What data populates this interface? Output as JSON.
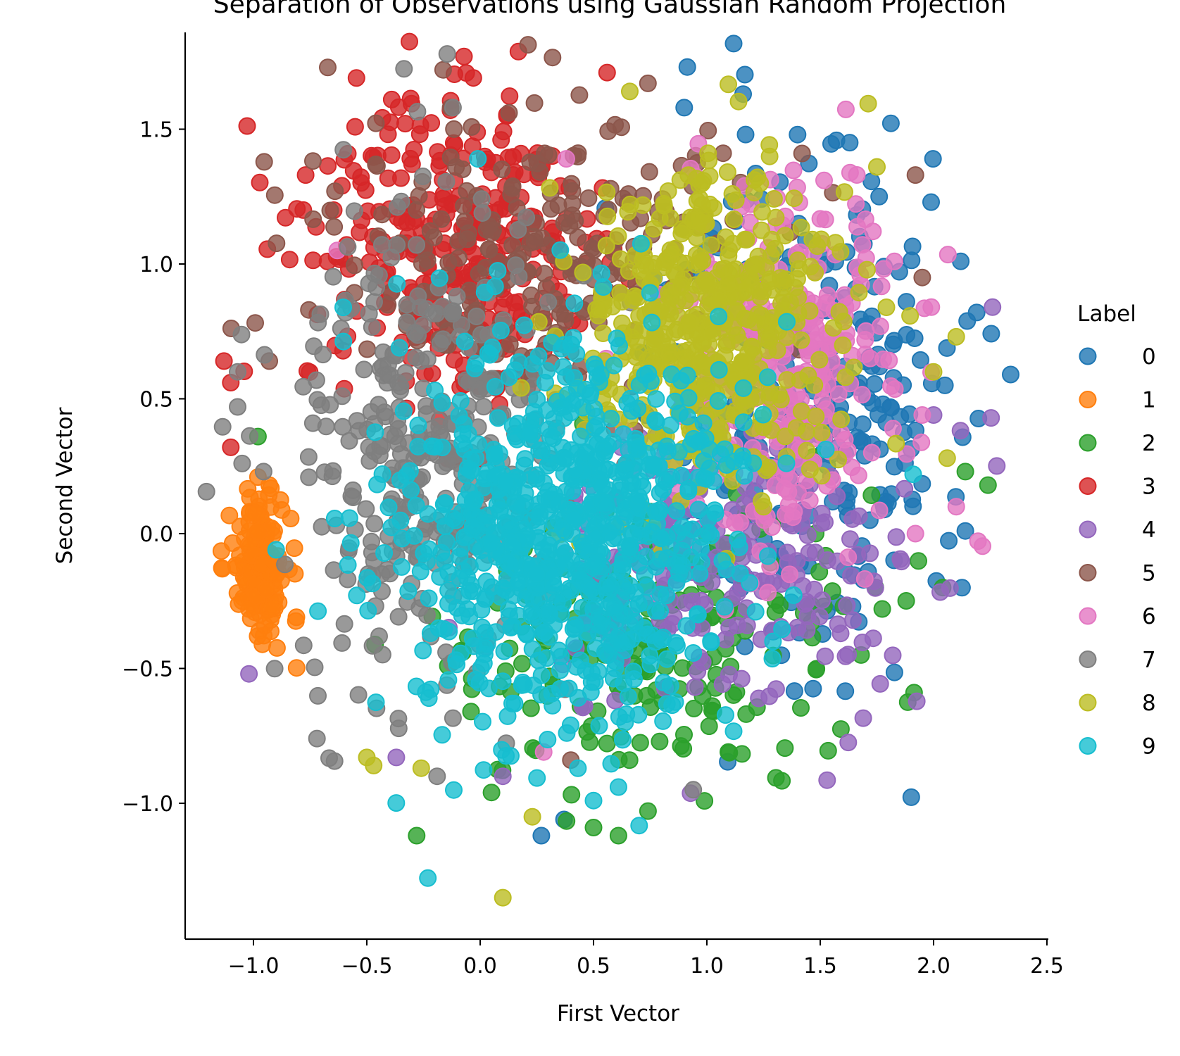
{
  "chart_data": {
    "type": "scatter",
    "title": "Separation of Observations using Gaussian Random Projection",
    "xlabel": "First Vector",
    "ylabel": "Second Vector",
    "xlim": [
      -1.3,
      2.5
    ],
    "ylim": [
      -1.5,
      1.87
    ],
    "xticks": [
      -1.0,
      -0.5,
      0.0,
      0.5,
      1.0,
      1.5,
      2.0,
      2.5
    ],
    "xtick_labels": [
      "−1.0",
      "−0.5",
      "0.0",
      "0.5",
      "1.0",
      "1.5",
      "2.0",
      "2.5"
    ],
    "yticks": [
      -1.0,
      -0.5,
      0.0,
      0.5,
      1.0,
      1.5
    ],
    "ytick_labels": [
      "−1.0",
      "−0.5",
      "0.0",
      "0.5",
      "1.0",
      "1.5"
    ],
    "grid": false,
    "legend": {
      "title": "Label",
      "placement": "right"
    },
    "series": [
      {
        "name": "0",
        "color": "#1f77b4",
        "center": [
          1.45,
          0.45
        ],
        "spread": [
          0.33,
          0.45
        ],
        "count": 280,
        "points": [
          [
            1.16,
            1.63
          ],
          [
            0.9,
            1.58
          ],
          [
            1.63,
            1.45
          ],
          [
            1.4,
            1.48
          ],
          [
            2.34,
            0.59
          ],
          [
            2.12,
            1.01
          ],
          [
            2.19,
            0.82
          ],
          [
            2.14,
            0.01
          ],
          [
            0.27,
            -1.12
          ],
          [
            0.37,
            -1.06
          ],
          [
            1.88,
            0.86
          ],
          [
            1.76,
            1.25
          ],
          [
            2.05,
            0.55
          ]
        ]
      },
      {
        "name": "1",
        "color": "#ff7f0e",
        "center": [
          -0.97,
          -0.12
        ],
        "spread": [
          0.06,
          0.14
        ],
        "count": 160,
        "points": [
          [
            -0.98,
            0.21
          ],
          [
            -1.05,
            -0.25
          ],
          [
            -0.93,
            0.18
          ],
          [
            -1.02,
            -0.28
          ]
        ]
      },
      {
        "name": "2",
        "color": "#2ca02c",
        "center": [
          0.75,
          -0.35
        ],
        "spread": [
          0.42,
          0.28
        ],
        "count": 230,
        "points": [
          [
            -0.28,
            -1.12
          ],
          [
            0.61,
            -1.12
          ],
          [
            2.24,
            0.18
          ],
          [
            2.14,
            0.23
          ],
          [
            2.04,
            -0.2
          ],
          [
            1.68,
            -0.45
          ],
          [
            -0.98,
            0.36
          ],
          [
            0.5,
            -1.09
          ],
          [
            0.05,
            -0.96
          ]
        ]
      },
      {
        "name": "3",
        "color": "#d62728",
        "center": [
          -0.1,
          1.05
        ],
        "spread": [
          0.33,
          0.27
        ],
        "count": 340,
        "points": [
          [
            -0.03,
            1.69
          ],
          [
            0.56,
            1.71
          ],
          [
            -0.39,
            1.61
          ],
          [
            -1.13,
            0.64
          ],
          [
            -1.1,
            0.56
          ],
          [
            -1.1,
            0.32
          ],
          [
            -0.77,
            1.33
          ],
          [
            -0.78,
            1.2
          ],
          [
            -0.61,
            1.29
          ]
        ]
      },
      {
        "name": "4",
        "color": "#9467bd",
        "center": [
          1.1,
          -0.1
        ],
        "spread": [
          0.42,
          0.3
        ],
        "count": 230,
        "points": [
          [
            -1.02,
            -0.52
          ],
          [
            2.26,
            0.84
          ],
          [
            2.0,
            0.44
          ],
          [
            1.59,
            -0.37
          ],
          [
            0.1,
            -0.9
          ],
          [
            -0.37,
            -0.83
          ]
        ]
      },
      {
        "name": "5",
        "color": "#8c564b",
        "center": [
          0.3,
          1.05
        ],
        "spread": [
          0.45,
          0.28
        ],
        "count": 230,
        "points": [
          [
            0.74,
            1.67
          ],
          [
            -0.13,
            1.58
          ],
          [
            1.92,
            1.33
          ],
          [
            1.95,
            0.95
          ],
          [
            -0.93,
            0.64
          ],
          [
            0.4,
            -0.84
          ],
          [
            1.42,
            1.41
          ]
        ]
      },
      {
        "name": "6",
        "color": "#e377c2",
        "center": [
          1.35,
          0.6
        ],
        "spread": [
          0.28,
          0.35
        ],
        "count": 300,
        "points": [
          [
            1.99,
            0.84
          ],
          [
            2.1,
            0.1
          ],
          [
            1.92,
            0.0
          ],
          [
            1.95,
            0.44
          ],
          [
            0.28,
            -0.81
          ],
          [
            -0.63,
            1.05
          ],
          [
            0.38,
            1.39
          ]
        ]
      },
      {
        "name": "7",
        "color": "#7f7f7f",
        "center": [
          -0.25,
          0.3
        ],
        "spread": [
          0.3,
          0.45
        ],
        "count": 340,
        "points": [
          [
            -1.07,
            0.6
          ],
          [
            -1.07,
            0.47
          ],
          [
            -1.05,
            0.26
          ],
          [
            -0.72,
            -0.76
          ],
          [
            0.94,
            -0.95
          ],
          [
            -0.19,
            -0.9
          ],
          [
            -0.12,
            1.58
          ]
        ]
      },
      {
        "name": "8",
        "color": "#bcbd22",
        "center": [
          1.0,
          0.75
        ],
        "spread": [
          0.28,
          0.3
        ],
        "count": 500,
        "points": [
          [
            0.1,
            -1.35
          ],
          [
            0.66,
            1.64
          ],
          [
            0.23,
            -1.05
          ],
          [
            -0.5,
            -0.83
          ],
          [
            -0.47,
            -0.86
          ],
          [
            -0.26,
            -0.87
          ],
          [
            2.06,
            0.28
          ],
          [
            2.1,
            0.73
          ],
          [
            1.75,
            1.36
          ],
          [
            2.0,
            0.6
          ]
        ]
      },
      {
        "name": "9",
        "color": "#17becf",
        "center": [
          0.35,
          0.0
        ],
        "spread": [
          0.38,
          0.37
        ],
        "count": 800,
        "points": [
          [
            0.5,
            -0.99
          ],
          [
            0.61,
            -0.94
          ],
          [
            1.91,
            0.22
          ],
          [
            -0.9,
            -0.06
          ],
          [
            -0.01,
            1.39
          ]
        ]
      }
    ]
  }
}
